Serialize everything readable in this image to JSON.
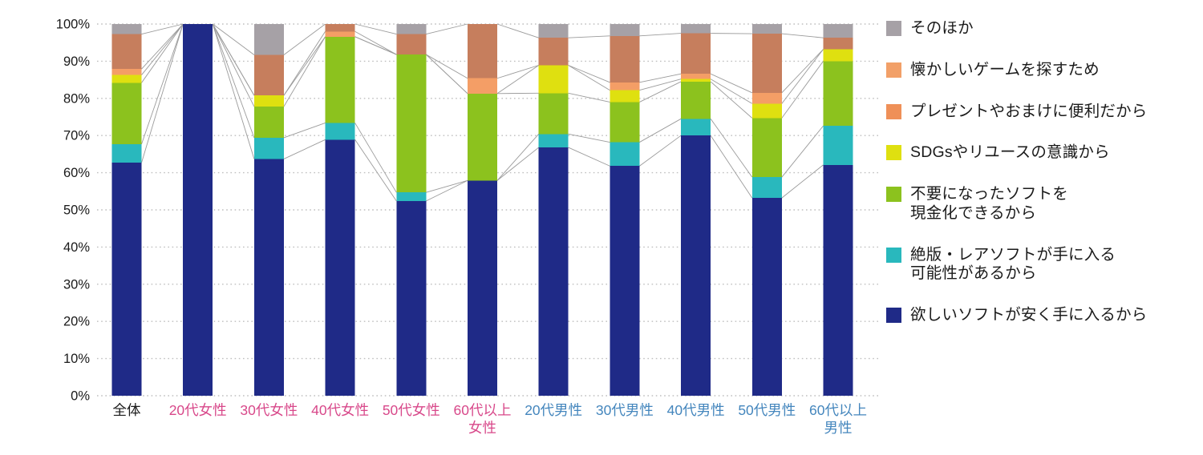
{
  "chart_data": {
    "type": "bar",
    "stacked": true,
    "percent": true,
    "title": "",
    "xlabel": "",
    "ylabel": "",
    "ylim": [
      0,
      100
    ],
    "y_ticks": [
      0,
      10,
      20,
      30,
      40,
      50,
      60,
      70,
      80,
      90,
      100
    ],
    "y_tick_suffix": "%",
    "grid": "dotted-horizontal",
    "legend_position": "right",
    "categories": [
      "全体",
      "20代女性",
      "30代女性",
      "40代女性",
      "50代女性",
      "60代以上\n女性",
      "20代男性",
      "30代男性",
      "40代男性",
      "50代男性",
      "60代以上\n男性"
    ],
    "category_label_colors": [
      "#1a1a1a",
      "#d8488a",
      "#d8488a",
      "#d8488a",
      "#d8488a",
      "#d8488a",
      "#4486bd",
      "#4486bd",
      "#4486bd",
      "#4486bd",
      "#4486bd"
    ],
    "series": [
      {
        "name": "欲しいソフトが安く手に入るから",
        "color": "#1f2a87",
        "values": [
          62.7,
          100,
          63.7,
          68.9,
          52.4,
          57.9,
          66.8,
          61.8,
          70.0,
          53.2,
          62.1
        ]
      },
      {
        "name": "絶版・レアソフトが手に入る可能性があるから",
        "color": "#29b8bd",
        "values": [
          5.0,
          0,
          5.7,
          4.5,
          2.3,
          0,
          3.6,
          6.4,
          4.5,
          5.6,
          10.5
        ]
      },
      {
        "name": "不要になったソフトを現金化できるから",
        "color": "#8cc21e",
        "values": [
          16.5,
          0,
          8.4,
          23.2,
          37.1,
          23.4,
          11.0,
          10.8,
          10.0,
          15.9,
          17.4
        ]
      },
      {
        "name": "SDGsやリユースの意識から",
        "color": "#dfe010",
        "values": [
          2.1,
          0,
          3.0,
          0,
          0,
          0,
          7.5,
          3.2,
          0.7,
          3.9,
          3.2
        ]
      },
      {
        "name": "プレゼントやおまけに便利だから",
        "color": "#f49e66",
        "values": [
          1.6,
          0,
          0,
          1.4,
          0,
          4.1,
          0,
          2.1,
          1.4,
          2.9,
          0
        ]
      },
      {
        "name": "懐かしいゲームを探すため",
        "color": "#c67e5d",
        "values": [
          9.4,
          0,
          10.9,
          2.0,
          5.5,
          14.6,
          7.4,
          12.5,
          10.9,
          15.9,
          3.1
        ]
      },
      {
        "name": "そのほか",
        "color": "#a6a1a6",
        "values": [
          2.7,
          0,
          8.3,
          0,
          2.7,
          0,
          3.7,
          3.2,
          2.5,
          2.6,
          3.7
        ]
      }
    ],
    "connector_lines": true
  },
  "legend": {
    "items": [
      {
        "label": "そのほか",
        "color": "#a6a1a6"
      },
      {
        "label": "懐かしいゲームを探すため",
        "color": "#f2a068"
      },
      {
        "label": "プレゼントやおまけに便利だから",
        "color": "#ef9058"
      },
      {
        "label": "SDGsやリユースの意識から",
        "color": "#dfe010"
      },
      {
        "label": "不要になったソフトを\n現金化できるから",
        "color": "#8cc21e"
      },
      {
        "label": "絶版・レアソフトが手に入る\n可能性があるから",
        "color": "#29b8bd"
      },
      {
        "label": "欲しいソフトが安く手に入るから",
        "color": "#1f2a87"
      }
    ]
  }
}
